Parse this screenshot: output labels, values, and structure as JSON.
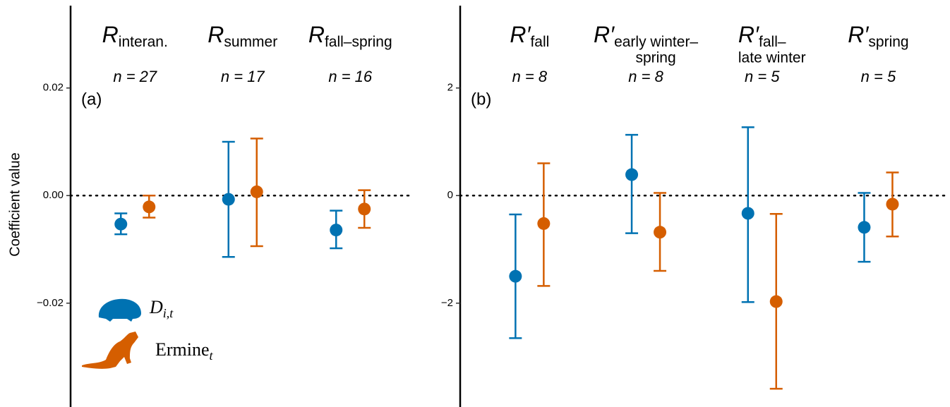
{
  "chart_data": [
    {
      "type": "errorbar",
      "panel_label": "(a)",
      "ylabel": "Coefficient value",
      "category_symbol": "R",
      "categories": [
        [
          "interan."
        ],
        [
          "summer"
        ],
        [
          "fall–spring"
        ]
      ],
      "sample_size_labels": [
        "n = 27",
        "n = 17",
        "n = 16"
      ],
      "ylim": [
        -0.0393,
        0.0357
      ],
      "yticks": [
        {
          "value": -0.02,
          "label": "−0.02"
        },
        {
          "value": 0,
          "label": "0.00"
        },
        0.02
      ],
      "reference_line": 0,
      "series": [
        {
          "name": "D",
          "name_subscript": "i,t",
          "color": "#0072b2",
          "values": [
            -0.0053,
            -0.0007,
            -0.0064
          ],
          "lower": [
            -0.0072,
            -0.0114,
            -0.0098
          ],
          "upper": [
            -0.0033,
            0.01,
            -0.0028
          ]
        },
        {
          "name": "Ermine",
          "name_subscript": "t",
          "color": "#d55e00",
          "values": [
            -0.0021,
            0.0007,
            -0.0025
          ],
          "lower": [
            -0.0041,
            -0.0094,
            -0.006
          ],
          "upper": [
            0.0,
            0.0106,
            0.001
          ]
        }
      ]
    },
    {
      "type": "errorbar",
      "panel_label": "(b)",
      "category_symbol": "R′",
      "categories": [
        [
          "fall"
        ],
        [
          "early winter–",
          "spring"
        ],
        [
          "fall–",
          "late winter"
        ],
        [
          "spring"
        ]
      ],
      "sample_size_labels": [
        "n = 8",
        "n = 8",
        "n = 5",
        "n = 5"
      ],
      "ylim": [
        -3.93,
        3.57
      ],
      "yticks": [
        {
          "value": -2,
          "label": "−2"
        },
        0,
        2
      ],
      "reference_line": 0,
      "series": [
        {
          "color": "#0072b2",
          "values": [
            -1.5,
            0.39,
            -0.33,
            -0.59
          ],
          "lower": [
            -2.65,
            -0.7,
            -1.98,
            -1.23
          ],
          "upper": [
            -0.35,
            1.13,
            1.27,
            0.05
          ]
        },
        {
          "color": "#d55e00",
          "values": [
            -0.52,
            -0.68,
            -1.97,
            -0.16
          ],
          "lower": [
            -1.68,
            -1.4,
            -3.59,
            -0.76
          ],
          "upper": [
            0.6,
            0.05,
            -0.34,
            0.43
          ]
        }
      ]
    }
  ]
}
